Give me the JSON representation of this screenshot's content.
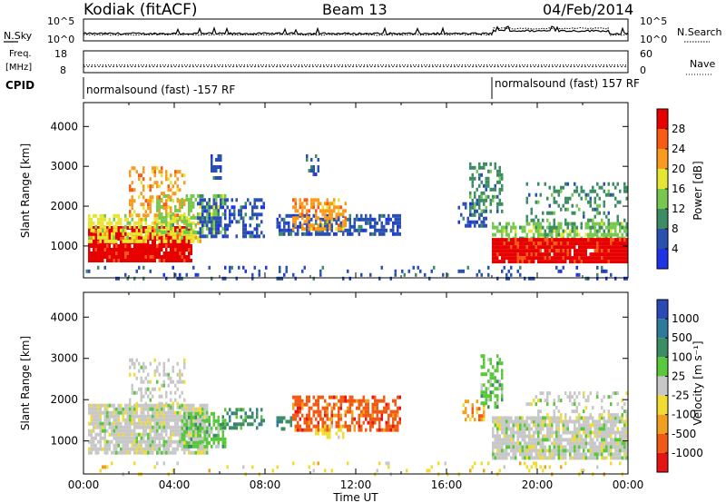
{
  "header": {
    "station": "Kodiak (fitACF)",
    "beam": "Beam 13",
    "date": "04/Feb/2014"
  },
  "noise_panel": {
    "left_label": "N.Sky",
    "right_label": "N.Search",
    "left_ticks": [
      "10^5",
      "10^0"
    ],
    "right_ticks": [
      "10^5",
      "10^0"
    ]
  },
  "freq_panel": {
    "left_label": "Freq.",
    "left_unit": "[MHz]",
    "right_label": "Nave",
    "left_ticks": [
      "18",
      "8"
    ],
    "right_ticks": [
      "60",
      "0"
    ],
    "freq_value_mhz": 10.8,
    "nave_value": 21
  },
  "cpid": {
    "label": "CPID",
    "segments": [
      {
        "start_hour": 0,
        "end_hour": 18,
        "text": "normalsound (fast) -157 RF"
      },
      {
        "start_hour": 18,
        "end_hour": 24,
        "text": "normalsound (fast) 157 RF"
      }
    ]
  },
  "chart_data": [
    {
      "type": "heatmap",
      "name": "power",
      "ylabel": "Slant Range [km]",
      "xlim": [
        0,
        24
      ],
      "ylim": [
        200,
        4600
      ],
      "yticks": [
        1000,
        2000,
        3000,
        4000
      ],
      "colorbar": {
        "label": "Power [dB]",
        "ticks": [
          4,
          8,
          12,
          16,
          20,
          24,
          28
        ],
        "colors": [
          "#1e32e6",
          "#2a50b0",
          "#3c8c64",
          "#78c850",
          "#e6e632",
          "#fa9b1e",
          "#fa5a14",
          "#e60000"
        ]
      },
      "regions": [
        {
          "x0": 0.2,
          "x1": 4.8,
          "y0": 600,
          "y1": 1500,
          "class": 7,
          "density": 0.95
        },
        {
          "x0": 0.2,
          "x1": 5.2,
          "y0": 1100,
          "y1": 1800,
          "class": 4,
          "density": 0.6
        },
        {
          "x0": 3.2,
          "x1": 6.3,
          "y0": 1300,
          "y1": 2300,
          "class": 3,
          "density": 0.5
        },
        {
          "x0": 2.0,
          "x1": 4.5,
          "y0": 1800,
          "y1": 3000,
          "class": 5,
          "density": 0.35
        },
        {
          "x0": 5.0,
          "x1": 8.0,
          "y0": 1200,
          "y1": 2200,
          "class": 1,
          "density": 0.45
        },
        {
          "x0": 5.6,
          "x1": 6.0,
          "y0": 2700,
          "y1": 3300,
          "class": 1,
          "density": 0.5
        },
        {
          "x0": 8.5,
          "x1": 14.0,
          "y0": 1300,
          "y1": 1800,
          "class": 1,
          "density": 0.6
        },
        {
          "x0": 9.2,
          "x1": 11.6,
          "y0": 1400,
          "y1": 2200,
          "class": 5,
          "density": 0.55
        },
        {
          "x0": 9.8,
          "x1": 10.4,
          "y0": 2800,
          "y1": 3300,
          "class": 1,
          "density": 0.35
        },
        {
          "x0": 16.5,
          "x1": 17.8,
          "y0": 1500,
          "y1": 2100,
          "class": 1,
          "density": 0.5
        },
        {
          "x0": 17.0,
          "x1": 18.5,
          "y0": 1800,
          "y1": 3100,
          "class": 2,
          "density": 0.4
        },
        {
          "x0": 18.0,
          "x1": 24.0,
          "y0": 1100,
          "y1": 1600,
          "class": 3,
          "density": 0.65
        },
        {
          "x0": 18.0,
          "x1": 24.0,
          "y0": 600,
          "y1": 1200,
          "class": 7,
          "density": 0.95
        },
        {
          "x0": 19.5,
          "x1": 24.0,
          "y0": 1500,
          "y1": 2600,
          "class": 2,
          "density": 0.3
        },
        {
          "x0": 0.0,
          "x1": 24.0,
          "y0": 200,
          "y1": 500,
          "class": 1,
          "density": 0.12
        }
      ]
    },
    {
      "type": "heatmap",
      "name": "velocity",
      "xlabel": "Time UT",
      "ylabel": "Slant Range [km]",
      "xlim": [
        0,
        24
      ],
      "ylim": [
        200,
        4600
      ],
      "xticks": [
        "00:00",
        "04:00",
        "08:00",
        "12:00",
        "16:00",
        "20:00",
        "00:00"
      ],
      "yticks": [
        1000,
        2000,
        3000,
        4000
      ],
      "colorbar": {
        "label": "Velocity [m s⁻¹]",
        "ticks": [
          "1000",
          "500",
          "100",
          "25",
          "-25",
          "-100",
          "-500",
          "-1000"
        ],
        "colors": [
          "#2a4ab8",
          "#2e7a9a",
          "#3c8c64",
          "#5ac83c",
          "#c8c8c8",
          "#f0dc32",
          "#f0a01e",
          "#f05a14",
          "#e61414"
        ]
      },
      "regions": [
        {
          "x0": 0.2,
          "x1": 5.5,
          "y0": 700,
          "y1": 1900,
          "class": 4,
          "density": 0.85
        },
        {
          "x0": 2.0,
          "x1": 4.5,
          "y0": 1800,
          "y1": 3000,
          "class": 4,
          "density": 0.3
        },
        {
          "x0": 4.3,
          "x1": 6.2,
          "y0": 900,
          "y1": 1700,
          "class": 3,
          "density": 0.6
        },
        {
          "x0": 6.0,
          "x1": 8.0,
          "y0": 1300,
          "y1": 1800,
          "class": 2,
          "density": 0.5
        },
        {
          "x0": 8.5,
          "x1": 9.2,
          "y0": 1300,
          "y1": 1600,
          "class": 2,
          "density": 0.5
        },
        {
          "x0": 9.2,
          "x1": 14.0,
          "y0": 1300,
          "y1": 2100,
          "class": 7,
          "density": 0.6
        },
        {
          "x0": 10.2,
          "x1": 11.5,
          "y0": 1100,
          "y1": 1400,
          "class": 5,
          "density": 0.5
        },
        {
          "x0": 16.7,
          "x1": 17.8,
          "y0": 1500,
          "y1": 2000,
          "class": 6,
          "density": 0.5
        },
        {
          "x0": 17.5,
          "x1": 18.5,
          "y0": 1800,
          "y1": 3100,
          "class": 3,
          "density": 0.5
        },
        {
          "x0": 18.0,
          "x1": 24.0,
          "y0": 600,
          "y1": 1600,
          "class": 4,
          "density": 0.85
        },
        {
          "x0": 19.5,
          "x1": 24.0,
          "y0": 1500,
          "y1": 2200,
          "class": 4,
          "density": 0.3
        },
        {
          "x0": 0.0,
          "x1": 24.0,
          "y0": 200,
          "y1": 500,
          "class": 5,
          "density": 0.1
        }
      ]
    }
  ]
}
